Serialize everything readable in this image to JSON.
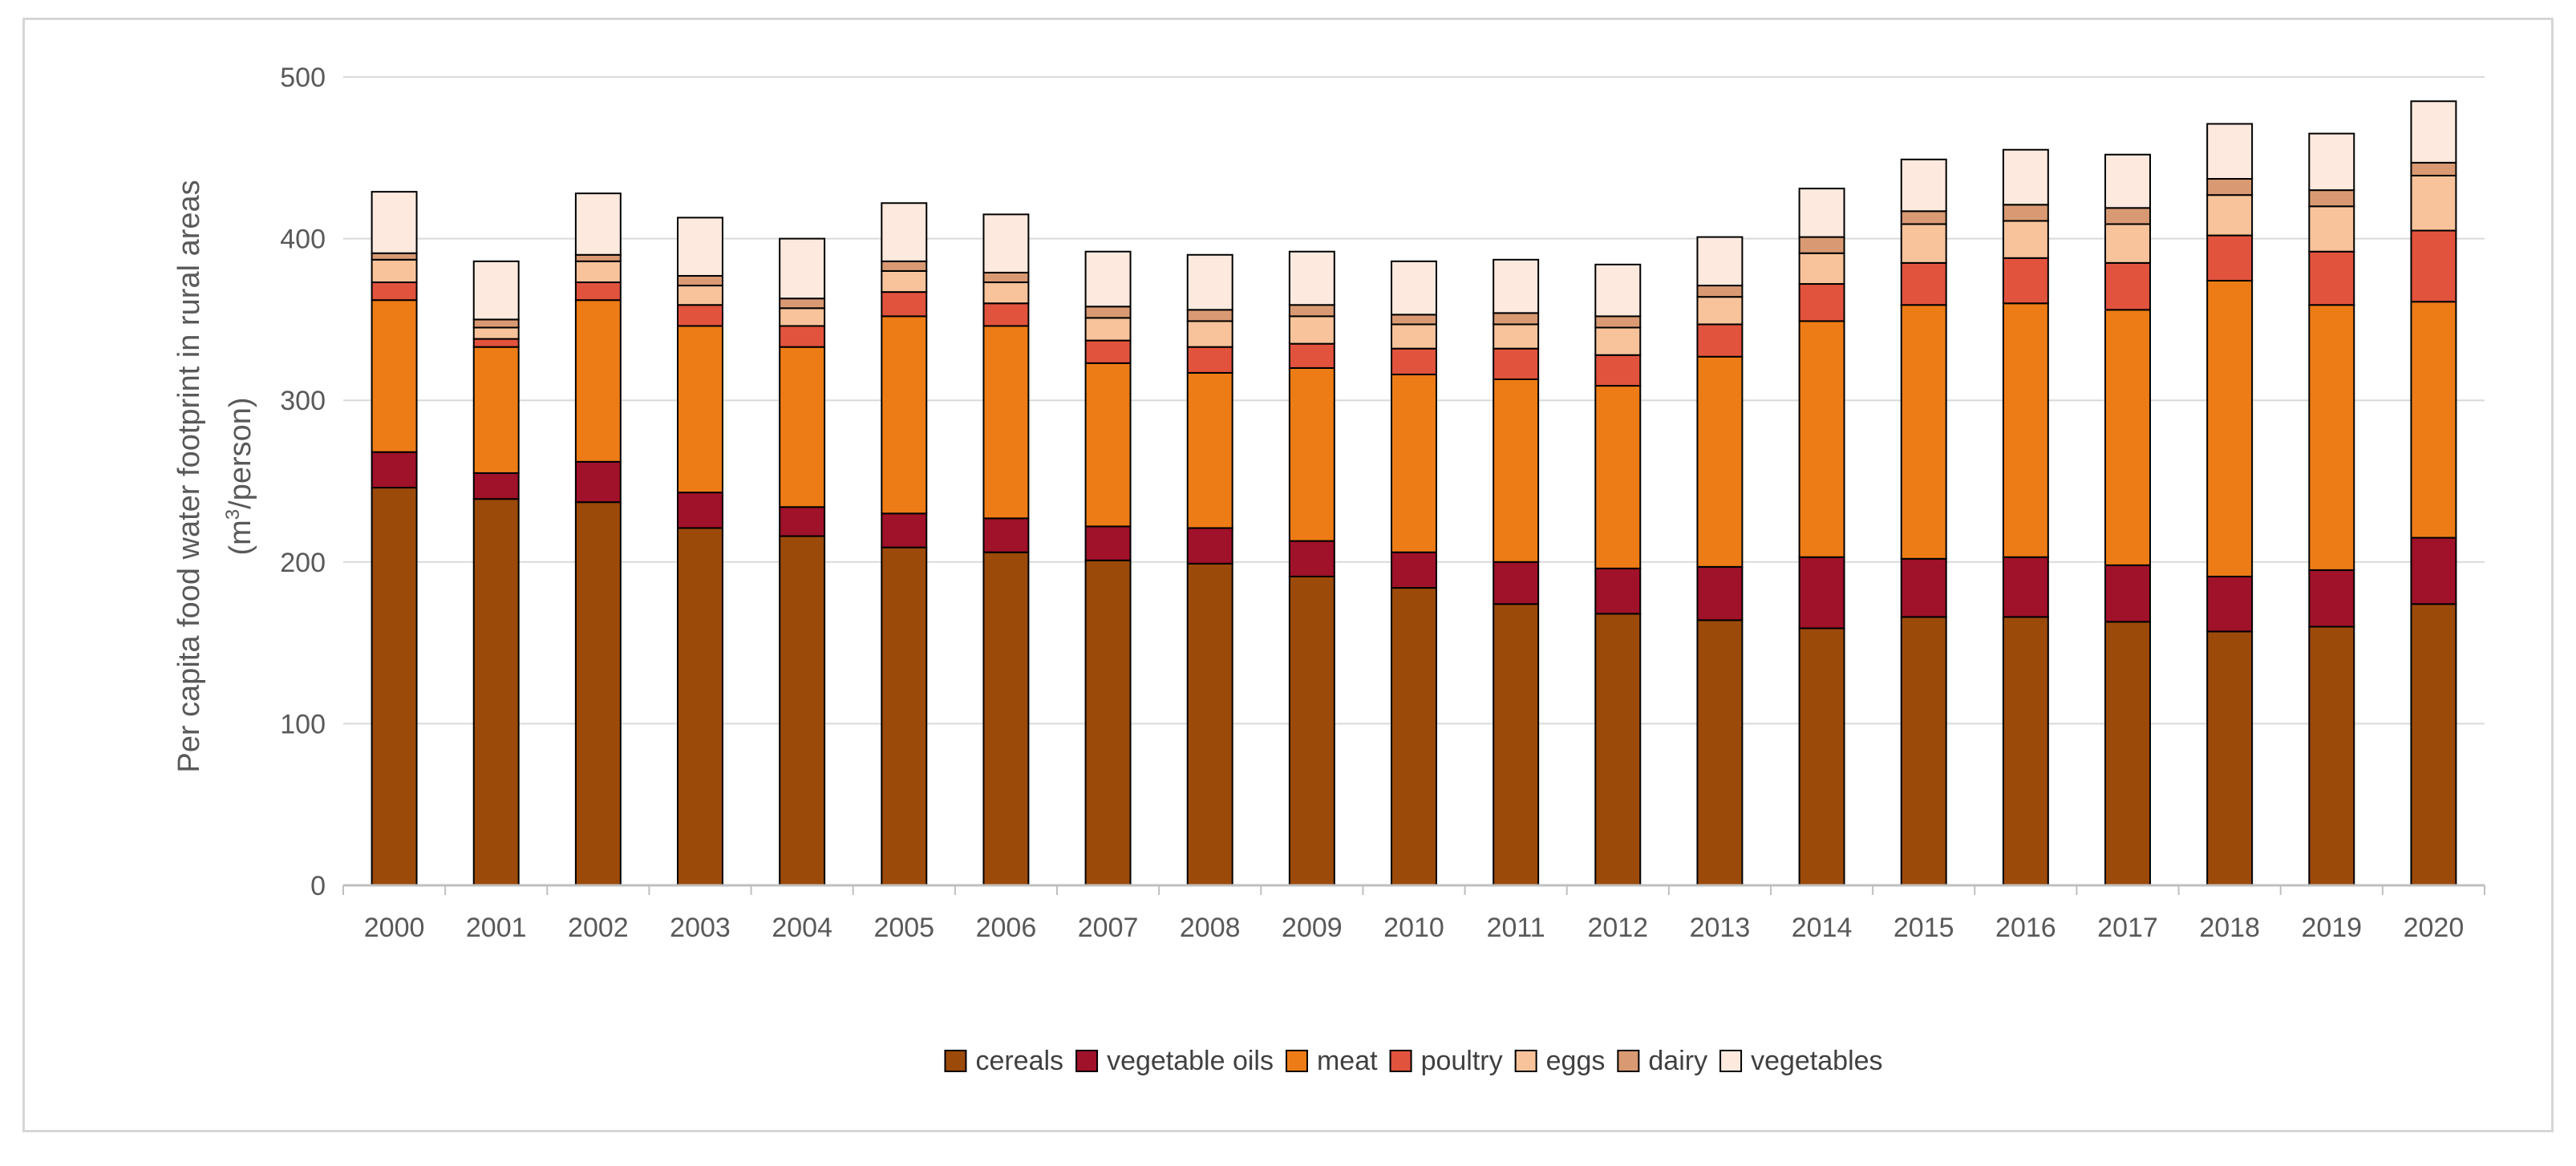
{
  "chart_data": {
    "type": "bar",
    "stacked": true,
    "title": "",
    "xlabel": "",
    "ylabel_line1": "Per capita food water footprint in rural areas",
    "ylabel_line2_prefix": "(m",
    "ylabel_line2_sup": "3",
    "ylabel_line2_suffix": "/person)",
    "ylim": [
      0,
      500
    ],
    "yticks": [
      0,
      100,
      200,
      300,
      400,
      500
    ],
    "grid": true,
    "legend_position": "bottom",
    "categories": [
      "2000",
      "2001",
      "2002",
      "2003",
      "2004",
      "2005",
      "2006",
      "2007",
      "2008",
      "2009",
      "2010",
      "2011",
      "2012",
      "2013",
      "2014",
      "2015",
      "2016",
      "2017",
      "2018",
      "2019",
      "2020"
    ],
    "series": [
      {
        "name": "cereals",
        "color": "#9c4a0a",
        "values": [
          246,
          239,
          237,
          221,
          216,
          209,
          206,
          201,
          199,
          191,
          184,
          174,
          168,
          164,
          159,
          166,
          166,
          163,
          157,
          160,
          174
        ]
      },
      {
        "name": "vegetable oils",
        "color": "#a0112a",
        "values": [
          22,
          16,
          25,
          22,
          18,
          21,
          21,
          21,
          22,
          22,
          22,
          26,
          28,
          33,
          44,
          36,
          37,
          35,
          34,
          35,
          41
        ]
      },
      {
        "name": "meat",
        "color": "#ee7c16",
        "values": [
          94,
          78,
          100,
          103,
          99,
          122,
          119,
          101,
          96,
          107,
          110,
          113,
          113,
          130,
          146,
          157,
          157,
          158,
          183,
          164,
          146
        ]
      },
      {
        "name": "poultry",
        "color": "#e2533d",
        "values": [
          11,
          5,
          11,
          13,
          13,
          15,
          14,
          14,
          16,
          15,
          16,
          19,
          19,
          20,
          23,
          26,
          28,
          29,
          28,
          33,
          44
        ]
      },
      {
        "name": "eggs",
        "color": "#f8c39a",
        "values": [
          14,
          7,
          13,
          12,
          11,
          13,
          13,
          14,
          16,
          17,
          15,
          15,
          17,
          17,
          19,
          24,
          23,
          24,
          25,
          28,
          34
        ]
      },
      {
        "name": "dairy",
        "color": "#d99a73",
        "values": [
          4,
          5,
          4,
          6,
          6,
          6,
          6,
          7,
          7,
          7,
          6,
          7,
          7,
          7,
          10,
          8,
          10,
          10,
          10,
          10,
          8
        ]
      },
      {
        "name": "vegetables",
        "color": "#fde9de",
        "values": [
          38,
          36,
          38,
          36,
          37,
          36,
          36,
          34,
          34,
          33,
          33,
          33,
          32,
          30,
          30,
          32,
          34,
          33,
          34,
          35,
          38
        ]
      }
    ]
  }
}
